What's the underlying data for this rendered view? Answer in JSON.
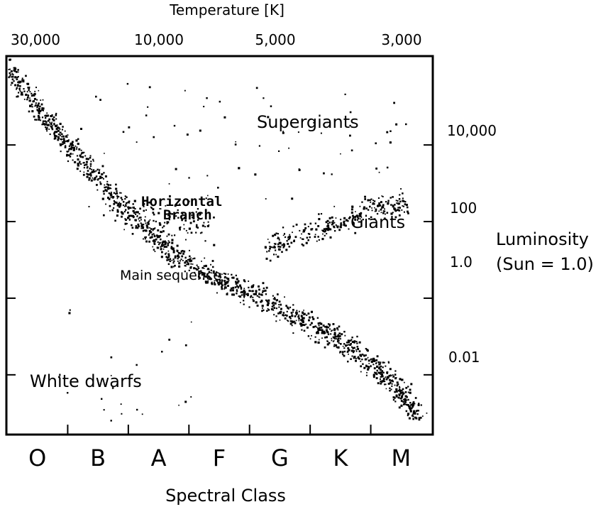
{
  "chart_data": {
    "type": "scatter",
    "title": "",
    "top_axis": {
      "label": "Temperature [K]",
      "ticks": [
        "30,000",
        "10,000",
        "5,000",
        "3,000"
      ]
    },
    "right_axis": {
      "label_line1": "Luminosity",
      "label_line2": "(Sun = 1.0)",
      "scale": "log",
      "ticks": [
        "10,000",
        "100",
        "1.0",
        "0.01"
      ]
    },
    "bottom_axis": {
      "label": "Spectral Class",
      "categories": [
        "O",
        "B",
        "A",
        "F",
        "G",
        "K",
        "M"
      ]
    },
    "regions": {
      "supergiants": "Supergiants",
      "giants": "Giants",
      "horizontal_branch_line1": "Horizontal",
      "horizontal_branch_line2": "Branch",
      "main_sequence": "Main sequence",
      "white_dwarfs": "White dwarfs"
    },
    "grid": false,
    "point_color": "#000000",
    "star_groups": [
      {
        "name": "main-sequence",
        "count": 1400,
        "path": [
          [
            0.0,
            1000000
          ],
          [
            0.5,
            100000
          ],
          [
            1.0,
            10000
          ],
          [
            1.6,
            1000
          ],
          [
            2.2,
            80
          ],
          [
            2.8,
            12
          ],
          [
            3.5,
            3
          ],
          [
            4.2,
            1.0
          ],
          [
            4.8,
            0.3
          ],
          [
            5.4,
            0.1
          ],
          [
            6.0,
            0.02
          ],
          [
            6.4,
            0.005
          ],
          [
            6.8,
            0.0008
          ]
        ],
        "spread_dex": 0.22
      },
      {
        "name": "giants",
        "count": 300,
        "path": [
          [
            4.3,
            20
          ],
          [
            4.7,
            40
          ],
          [
            5.2,
            60
          ],
          [
            5.6,
            100
          ],
          [
            6.0,
            230
          ],
          [
            6.3,
            260
          ],
          [
            6.6,
            250
          ]
        ],
        "spread_dex": 0.22
      },
      {
        "name": "horizontal-branch",
        "count": 120,
        "path": [
          [
            1.7,
            200
          ],
          [
            2.3,
            160
          ],
          [
            2.9,
            90
          ],
          [
            3.4,
            60
          ]
        ],
        "spread_dex": 0.35
      },
      {
        "name": "supergiants",
        "count": 70,
        "x_range": [
          1.2,
          6.9
        ],
        "y_range": [
          200,
          400000
        ]
      },
      {
        "name": "white-dwarfs",
        "count": 22,
        "x_range": [
          0.8,
          3.1
        ],
        "y_range": [
          0.0006,
          0.5
        ]
      }
    ],
    "x_domain": [
      0,
      7
    ],
    "y_domain": [
      0.0003,
      2000000
    ]
  }
}
